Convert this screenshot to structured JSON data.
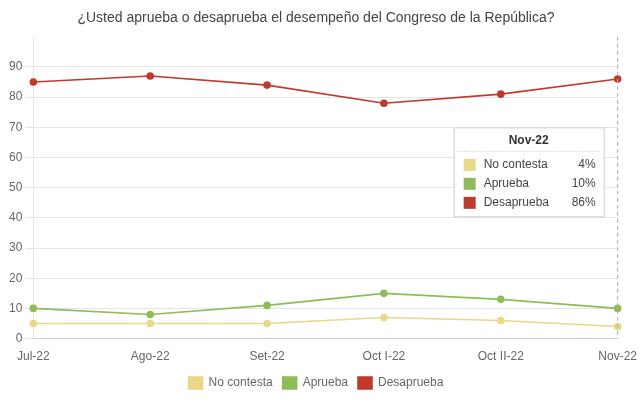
{
  "chart_data": {
    "type": "line",
    "title": "¿Usted aprueba o desaprueba el desempeño del Congreso de la República?",
    "categories": [
      "Jul-22",
      "Ago-22",
      "Set-22",
      "Oct I-22",
      "Oct II-22",
      "Nov-22"
    ],
    "series": [
      {
        "name": "No contesta",
        "color": "#e8d88a",
        "values": [
          5,
          5,
          5,
          7,
          6,
          4
        ]
      },
      {
        "name": "Aprueba",
        "color": "#8fbc5a",
        "values": [
          10,
          8,
          11,
          15,
          13,
          10
        ]
      },
      {
        "name": "Desaprueba",
        "color": "#c0392b",
        "values": [
          85,
          87,
          84,
          78,
          81,
          86
        ]
      }
    ],
    "marker": "circle",
    "ylim": [
      0,
      100
    ],
    "yticks": [
      0,
      10,
      20,
      30,
      40,
      50,
      60,
      70,
      80,
      90
    ],
    "grid": true,
    "legend": "bottom",
    "annotations": [
      {
        "type": "vline",
        "x": "Nov-22",
        "line_style": "dashed"
      },
      {
        "type": "legend_box",
        "title": "Nov-22",
        "labels": [
          "No contesta",
          "Aprueba",
          "Desaprueba"
        ],
        "colors": [
          "#e8d88a",
          "#8fbc5a",
          "#c0392b"
        ],
        "values": [
          4,
          10,
          86
        ],
        "value_labels": [
          "4%",
          "10%",
          "86%"
        ]
      }
    ]
  }
}
